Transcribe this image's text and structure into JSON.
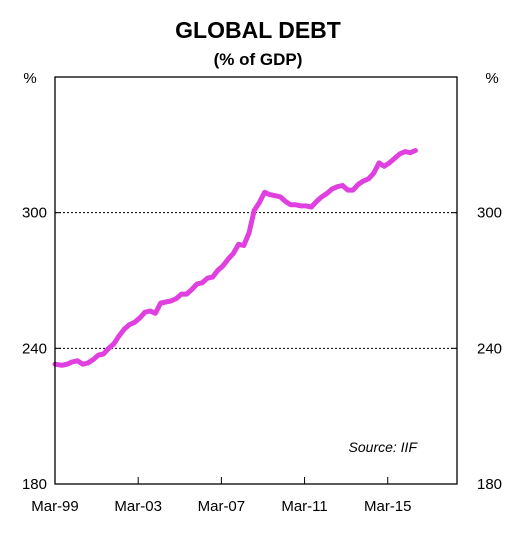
{
  "chart_data": {
    "type": "line",
    "title": "GLOBAL DEBT",
    "subtitle": "(% of GDP)",
    "y_unit_left": "%",
    "y_unit_right": "%",
    "ylim": [
      180,
      360
    ],
    "y_ticks": [
      180,
      240,
      300
    ],
    "x_range": [
      1999.17,
      2018.5
    ],
    "x_ticks": [
      {
        "x": 1999.17,
        "label": "Mar-99"
      },
      {
        "x": 2003.17,
        "label": "Mar-03"
      },
      {
        "x": 2007.17,
        "label": "Mar-07"
      },
      {
        "x": 2011.17,
        "label": "Mar-11"
      },
      {
        "x": 2015.17,
        "label": "Mar-15"
      }
    ],
    "gridlines_y": [
      240,
      300
    ],
    "grid_style": "dotted",
    "source": "Source: IIF",
    "series": [
      {
        "color": "#e040e0",
        "points": [
          [
            1999.17,
            233.0
          ],
          [
            1999.5,
            232.5
          ],
          [
            1999.75,
            233.0
          ],
          [
            2000.0,
            234.0
          ],
          [
            2000.25,
            234.5
          ],
          [
            2000.5,
            233.0
          ],
          [
            2000.75,
            233.5
          ],
          [
            2001.0,
            235.0
          ],
          [
            2001.25,
            237.0
          ],
          [
            2001.5,
            237.5
          ],
          [
            2001.75,
            240.0
          ],
          [
            2002.0,
            242.0
          ],
          [
            2002.25,
            245.5
          ],
          [
            2002.5,
            248.5
          ],
          [
            2002.75,
            250.5
          ],
          [
            2003.0,
            251.5
          ],
          [
            2003.25,
            253.5
          ],
          [
            2003.5,
            256.0
          ],
          [
            2003.75,
            256.5
          ],
          [
            2004.0,
            255.5
          ],
          [
            2004.25,
            260.0
          ],
          [
            2004.5,
            260.5
          ],
          [
            2004.75,
            261.0
          ],
          [
            2005.0,
            262.0
          ],
          [
            2005.25,
            264.0
          ],
          [
            2005.5,
            264.0
          ],
          [
            2005.75,
            266.0
          ],
          [
            2006.0,
            268.5
          ],
          [
            2006.25,
            269.0
          ],
          [
            2006.5,
            271.0
          ],
          [
            2006.75,
            271.5
          ],
          [
            2007.0,
            274.5
          ],
          [
            2007.25,
            276.5
          ],
          [
            2007.5,
            279.5
          ],
          [
            2007.75,
            282.0
          ],
          [
            2008.0,
            286.0
          ],
          [
            2008.25,
            285.5
          ],
          [
            2008.5,
            291.0
          ],
          [
            2008.75,
            301.0
          ],
          [
            2009.0,
            304.5
          ],
          [
            2009.25,
            309.0
          ],
          [
            2009.5,
            308.0
          ],
          [
            2009.75,
            307.5
          ],
          [
            2010.0,
            307.0
          ],
          [
            2010.25,
            305.0
          ],
          [
            2010.5,
            303.5
          ],
          [
            2010.75,
            303.5
          ],
          [
            2011.0,
            303.0
          ],
          [
            2011.25,
            303.0
          ],
          [
            2011.5,
            302.5
          ],
          [
            2011.75,
            305.0
          ],
          [
            2012.0,
            307.0
          ],
          [
            2012.25,
            308.5
          ],
          [
            2012.5,
            310.5
          ],
          [
            2012.75,
            311.5
          ],
          [
            2013.0,
            312.0
          ],
          [
            2013.25,
            310.0
          ],
          [
            2013.5,
            310.0
          ],
          [
            2013.75,
            312.5
          ],
          [
            2014.0,
            314.0
          ],
          [
            2014.25,
            315.0
          ],
          [
            2014.5,
            317.5
          ],
          [
            2014.75,
            322.0
          ],
          [
            2015.0,
            320.5
          ],
          [
            2015.25,
            322.0
          ],
          [
            2015.5,
            324.0
          ],
          [
            2015.75,
            326.0
          ],
          [
            2016.0,
            327.0
          ],
          [
            2016.25,
            326.5
          ],
          [
            2016.5,
            327.5
          ]
        ]
      }
    ]
  }
}
